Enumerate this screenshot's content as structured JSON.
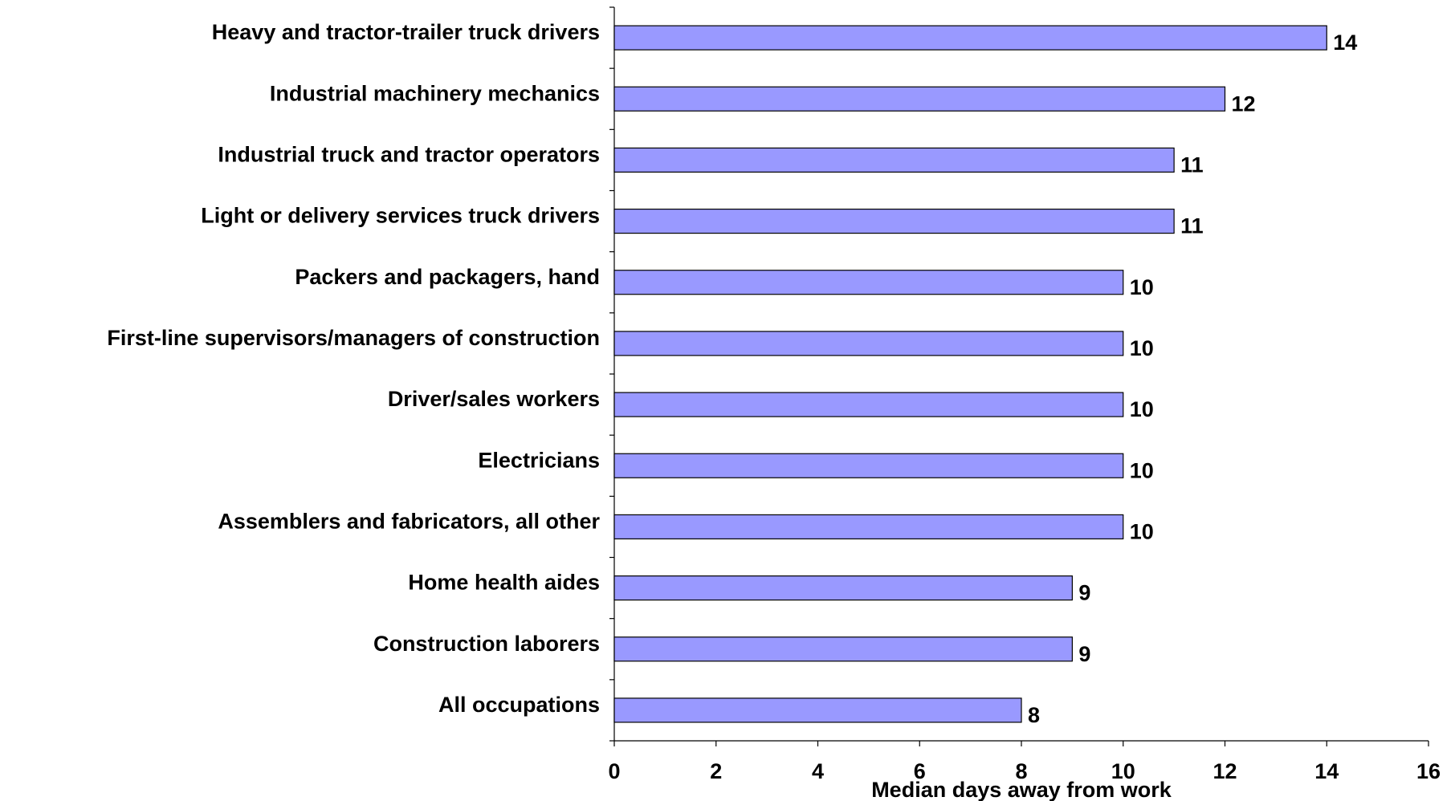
{
  "chart_data": {
    "type": "bar",
    "orientation": "horizontal",
    "x_label": "Median days away from work",
    "categories": [
      "Heavy and tractor-trailer truck drivers",
      "Industrial machinery mechanics",
      "Industrial truck and tractor operators",
      "Light or delivery services truck drivers",
      "Packers and packagers, hand",
      "First-line supervisors/managers of construction",
      "Driver/sales workers",
      "Electricians",
      "Assemblers and fabricators, all other",
      "Home health aides",
      "Construction laborers",
      "All occupations"
    ],
    "values": [
      14,
      12,
      11,
      11,
      10,
      10,
      10,
      10,
      10,
      9,
      9,
      8
    ],
    "color": "#9999ff",
    "xlim": [
      0,
      16
    ],
    "xticks": [
      0,
      2,
      4,
      6,
      8,
      10,
      12,
      14,
      16
    ],
    "grid": false
  }
}
